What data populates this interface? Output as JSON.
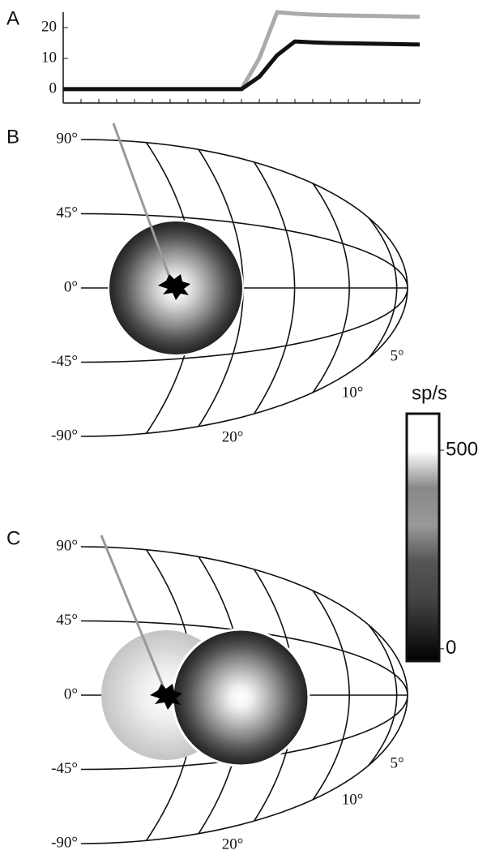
{
  "panel_labels": [
    "A",
    "B",
    "C"
  ],
  "chart_data": {
    "type": "line",
    "x": [
      0,
      1,
      2,
      3,
      4,
      5,
      6,
      7,
      8,
      9,
      10,
      11,
      12,
      13,
      14,
      15,
      16,
      17,
      18,
      19,
      20
    ],
    "xlim": [
      0,
      20
    ],
    "ylim": [
      -4.5,
      25
    ],
    "yticks": [
      0,
      10,
      20
    ],
    "series": [
      {
        "color": "#aaaaaa",
        "values": [
          0,
          0,
          0,
          0,
          0,
          0,
          0,
          0,
          0,
          0,
          0,
          10,
          25,
          24.5,
          24.2,
          24,
          23.9,
          23.8,
          23.7,
          23.6,
          23.5
        ]
      },
      {
        "color": "#111111",
        "values": [
          0,
          0,
          0,
          0,
          0,
          0,
          0,
          0,
          0,
          0,
          0,
          4,
          11,
          15.5,
          15.2,
          15,
          14.9,
          14.8,
          14.7,
          14.6,
          14.5
        ]
      }
    ]
  },
  "panel_b": {
    "latitude_labels": [
      "90°",
      "45°",
      "0°",
      "-45°",
      "-90°"
    ],
    "eccentricity_labels": [
      "5°",
      "10°",
      "20°"
    ]
  },
  "panel_c": {
    "latitude_labels": [
      "90°",
      "45°",
      "0°",
      "-45°",
      "-90°"
    ],
    "eccentricity_labels": [
      "5°",
      "10°",
      "20°"
    ]
  },
  "colorbar": {
    "title": "sp/s",
    "lim": [
      -31,
      592
    ],
    "ticks": [
      0,
      500
    ]
  }
}
